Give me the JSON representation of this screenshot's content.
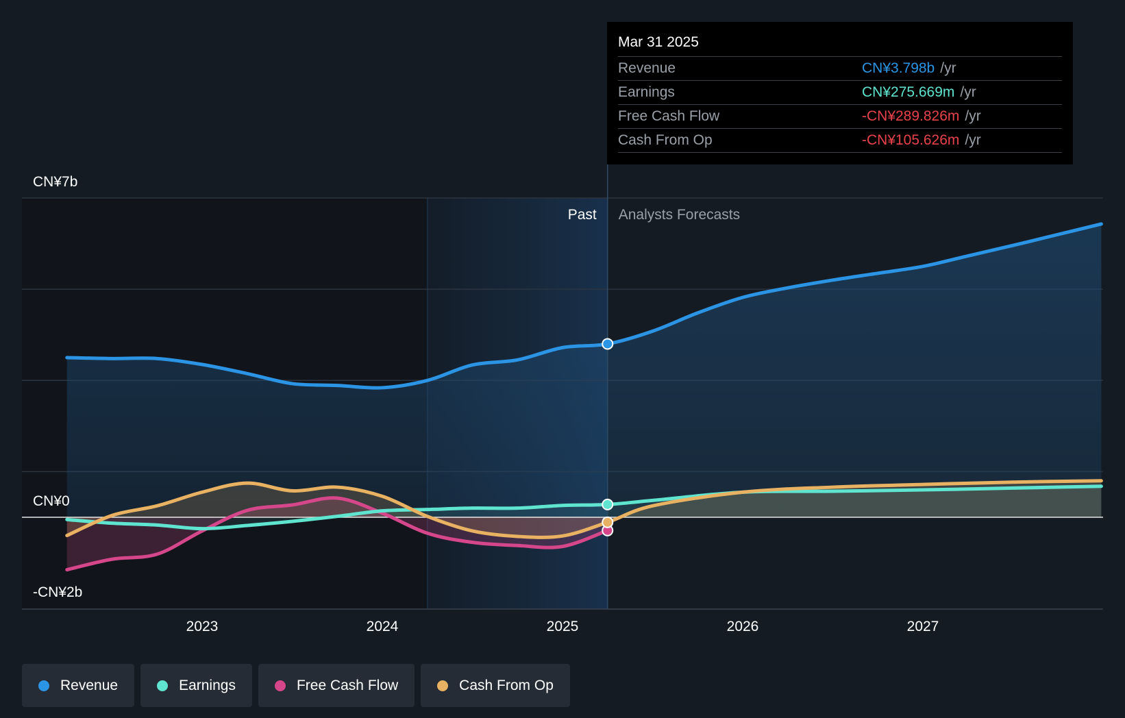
{
  "tooltip": {
    "date": "Mar 31 2025",
    "rows": [
      {
        "label": "Revenue",
        "value": "CN¥3.798b",
        "unit": "/yr",
        "color": "#2b94e5"
      },
      {
        "label": "Earnings",
        "value": "CN¥275.669m",
        "unit": "/yr",
        "color": "#5fe4cf"
      },
      {
        "label": "Free Cash Flow",
        "value": "-CN¥289.826m",
        "unit": "/yr",
        "color": "#e8424a"
      },
      {
        "label": "Cash From Op",
        "value": "-CN¥105.626m",
        "unit": "/yr",
        "color": "#e8424a"
      }
    ]
  },
  "legend": [
    {
      "label": "Revenue",
      "color": "#2b94e5"
    },
    {
      "label": "Earnings",
      "color": "#5fe4cf"
    },
    {
      "label": "Free Cash Flow",
      "color": "#d5478a"
    },
    {
      "label": "Cash From Op",
      "color": "#e8b262"
    }
  ],
  "chart_data": {
    "type": "line",
    "y_axis_labels": [
      "CN¥7b",
      "CN¥0",
      "-CN¥2b"
    ],
    "ylim": [
      -2,
      7
    ],
    "xlim": [
      2022.25,
      2027.99
    ],
    "x_ticks": [
      "2023",
      "2024",
      "2025",
      "2026",
      "2027"
    ],
    "x_tick_values": [
      2023,
      2024,
      2025,
      2026,
      2027
    ],
    "past_label": "Past",
    "forecast_label": "Analysts Forecasts",
    "divider_x": 2025.25,
    "past_shade_start": 2024.25,
    "series": [
      {
        "name": "Revenue",
        "color": "#2b94e5",
        "x": [
          2022.25,
          2022.5,
          2022.75,
          2023.0,
          2023.25,
          2023.5,
          2023.75,
          2024.0,
          2024.25,
          2024.5,
          2024.75,
          2025.0,
          2025.25,
          2025.5,
          2025.75,
          2026.0,
          2026.25,
          2026.5,
          2026.75,
          2027.0,
          2027.25,
          2027.5,
          2027.75,
          2027.99
        ],
        "values": [
          3.5,
          3.48,
          3.48,
          3.35,
          3.15,
          2.93,
          2.89,
          2.84,
          3.0,
          3.34,
          3.45,
          3.72,
          3.8,
          4.08,
          4.48,
          4.82,
          5.03,
          5.2,
          5.35,
          5.5,
          5.73,
          5.96,
          6.2,
          6.43
        ]
      },
      {
        "name": "Earnings",
        "color": "#5fe4cf",
        "x": [
          2022.25,
          2022.5,
          2022.75,
          2023.0,
          2023.25,
          2023.5,
          2023.75,
          2024.0,
          2024.25,
          2024.5,
          2024.75,
          2025.0,
          2025.25,
          2025.5,
          2026.0,
          2026.5,
          2027.0,
          2027.5,
          2027.99
        ],
        "values": [
          -0.05,
          -0.13,
          -0.17,
          -0.25,
          -0.18,
          -0.09,
          0.02,
          0.14,
          0.17,
          0.2,
          0.2,
          0.26,
          0.28,
          0.37,
          0.55,
          0.57,
          0.6,
          0.64,
          0.68
        ]
      },
      {
        "name": "Free Cash Flow",
        "color": "#d5478a",
        "x": [
          2022.25,
          2022.5,
          2022.75,
          2023.0,
          2023.25,
          2023.5,
          2023.75,
          2024.0,
          2024.25,
          2024.5,
          2024.75,
          2025.0,
          2025.25
        ],
        "values": [
          -1.15,
          -0.92,
          -0.81,
          -0.3,
          0.15,
          0.27,
          0.42,
          0.09,
          -0.35,
          -0.55,
          -0.62,
          -0.64,
          -0.29
        ]
      },
      {
        "name": "Cash From Op",
        "color": "#e8b262",
        "x": [
          2022.25,
          2022.5,
          2022.75,
          2023.0,
          2023.25,
          2023.5,
          2023.75,
          2024.0,
          2024.25,
          2024.5,
          2024.75,
          2025.0,
          2025.25,
          2025.5,
          2026.0,
          2026.5,
          2027.0,
          2027.5,
          2027.99
        ],
        "values": [
          -0.4,
          0.04,
          0.25,
          0.55,
          0.75,
          0.58,
          0.66,
          0.46,
          0.02,
          -0.3,
          -0.42,
          -0.41,
          -0.11,
          0.25,
          0.55,
          0.66,
          0.72,
          0.77,
          0.8
        ]
      }
    ]
  }
}
